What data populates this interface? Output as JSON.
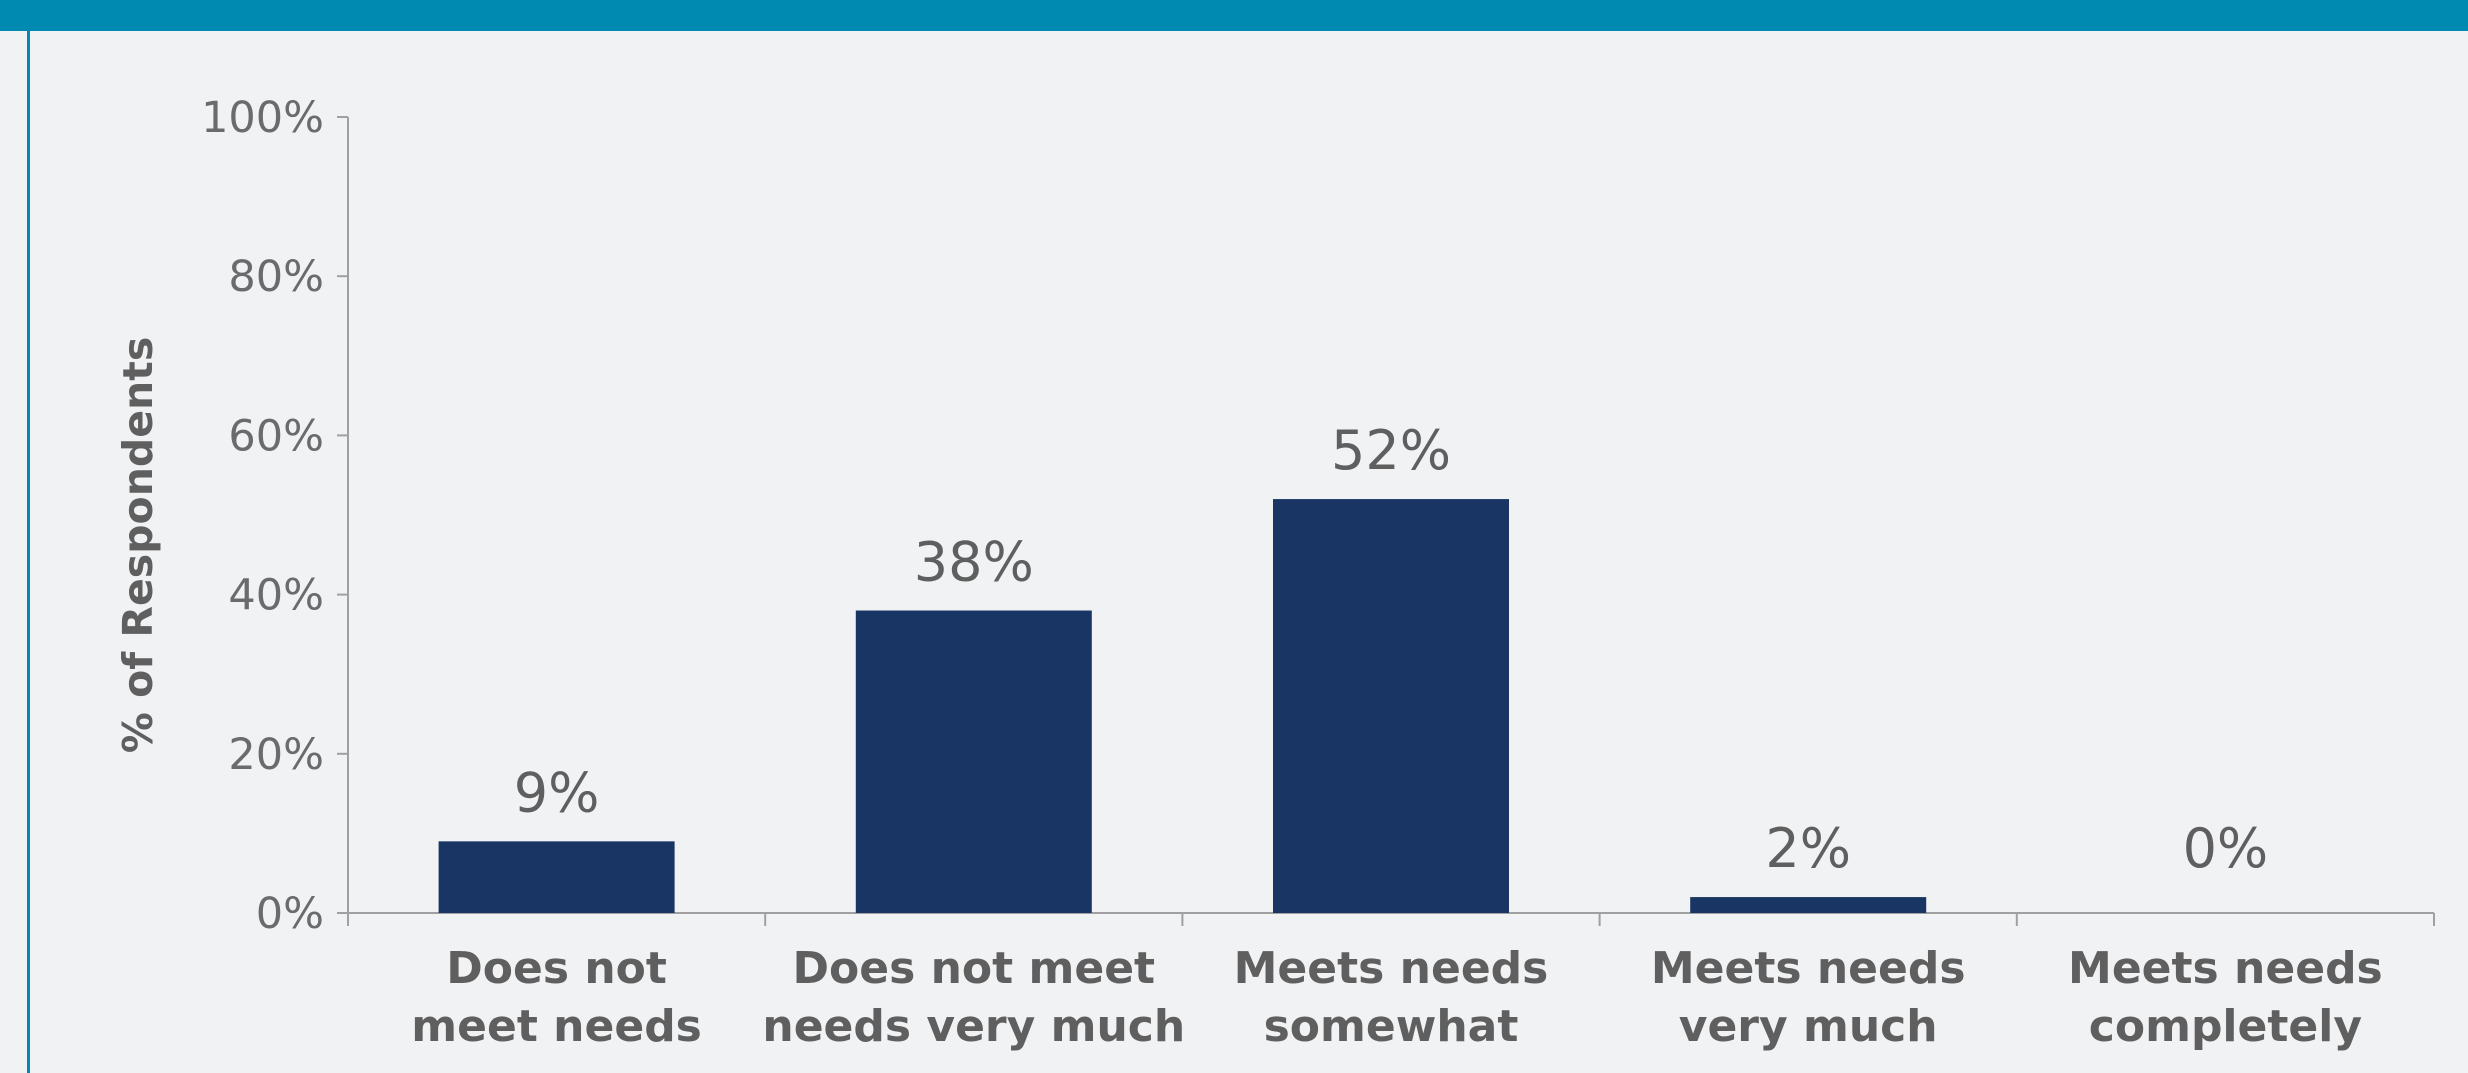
{
  "colors": {
    "bar": "#193563",
    "header_bar": "#0089b1",
    "background": "#f1f2f4",
    "axis": "#a0a0a0"
  },
  "chart_data": {
    "type": "bar",
    "categories": [
      [
        "Does not",
        "meet needs"
      ],
      [
        "Does not meet",
        "needs very much"
      ],
      [
        "Meets needs",
        "somewhat"
      ],
      [
        "Meets needs",
        "very much"
      ],
      [
        "Meets needs",
        "completely"
      ]
    ],
    "values": [
      9,
      38,
      52,
      2,
      0
    ],
    "value_labels": [
      "9%",
      "38%",
      "52%",
      "2%",
      "0%"
    ],
    "title": "",
    "xlabel": "",
    "ylabel": "% of Respondents",
    "ylim": [
      0,
      100
    ],
    "yticks": [
      0,
      20,
      40,
      60,
      80,
      100
    ],
    "ytick_labels": [
      "0%",
      "20%",
      "40%",
      "60%",
      "80%",
      "100%"
    ],
    "grid": false,
    "legend": "none"
  }
}
